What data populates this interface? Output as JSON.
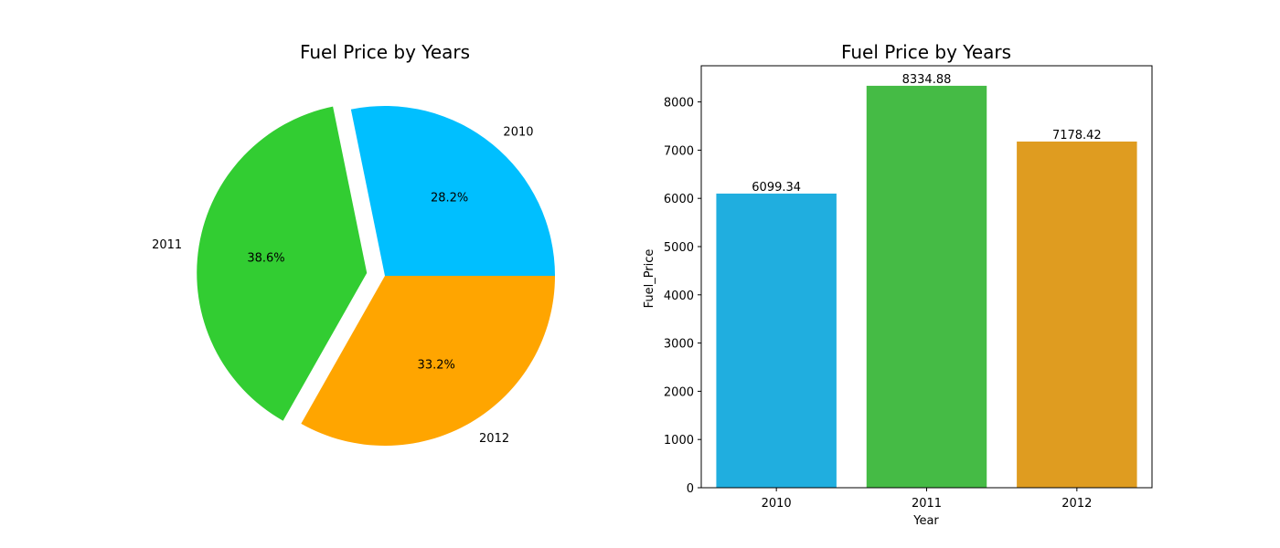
{
  "chart_data": [
    {
      "type": "pie",
      "title": "Fuel Price by Years",
      "labels": [
        "2010",
        "2011",
        "2012"
      ],
      "values": [
        28.2,
        38.6,
        33.2
      ],
      "pct_labels": [
        "28.2%",
        "38.6%",
        "33.2%"
      ],
      "colors": [
        "#00bfff",
        "#32cd32",
        "#ffa500"
      ],
      "exploded": "2011"
    },
    {
      "type": "bar",
      "title": "Fuel Price by Years",
      "categories": [
        "2010",
        "2011",
        "2012"
      ],
      "values": [
        6099.34,
        8334.88,
        7178.42
      ],
      "value_labels": [
        "6099.34",
        "8334.88",
        "7178.42"
      ],
      "colors": [
        "#20aedf",
        "#45bb45",
        "#df9c20"
      ],
      "xlabel": "Year",
      "ylabel": "Fuel_Price",
      "ylim": [
        0,
        8750
      ],
      "yticks": [
        0,
        1000,
        2000,
        3000,
        4000,
        5000,
        6000,
        7000,
        8000
      ],
      "ytick_labels": [
        "0",
        "1000",
        "2000",
        "3000",
        "4000",
        "5000",
        "6000",
        "7000",
        "8000"
      ],
      "grid": false,
      "legend": false
    }
  ]
}
